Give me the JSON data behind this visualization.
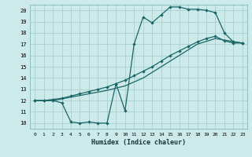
{
  "xlabel": "Humidex (Indice chaleur)",
  "bg_color": "#cceaea",
  "grid_color": "#aacfcf",
  "line_color": "#1a6666",
  "xlim": [
    -0.5,
    23.5
  ],
  "ylim": [
    9.5,
    20.5
  ],
  "xticks": [
    0,
    1,
    2,
    3,
    4,
    5,
    6,
    7,
    8,
    9,
    10,
    11,
    12,
    13,
    14,
    15,
    16,
    17,
    18,
    19,
    20,
    21,
    22,
    23
  ],
  "yticks": [
    10,
    11,
    12,
    13,
    14,
    15,
    16,
    17,
    18,
    19,
    20
  ],
  "series1": [
    [
      0,
      12.0
    ],
    [
      1,
      12.0
    ],
    [
      2,
      12.0
    ],
    [
      3,
      11.8
    ],
    [
      4,
      10.1
    ],
    [
      5,
      10.0
    ],
    [
      6,
      10.1
    ],
    [
      7,
      10.0
    ],
    [
      8,
      10.0
    ],
    [
      9,
      13.5
    ],
    [
      10,
      11.1
    ],
    [
      11,
      17.0
    ],
    [
      12,
      19.4
    ],
    [
      13,
      18.9
    ],
    [
      14,
      19.6
    ],
    [
      15,
      20.3
    ],
    [
      16,
      20.3
    ],
    [
      17,
      20.1
    ],
    [
      18,
      20.1
    ],
    [
      19,
      20.0
    ],
    [
      20,
      19.8
    ],
    [
      21,
      18.0
    ],
    [
      22,
      17.2
    ],
    [
      23,
      17.1
    ]
  ],
  "series2": [
    [
      0,
      12.0
    ],
    [
      1,
      12.0
    ],
    [
      2,
      12.1
    ],
    [
      3,
      12.2
    ],
    [
      4,
      12.4
    ],
    [
      5,
      12.6
    ],
    [
      6,
      12.8
    ],
    [
      7,
      13.0
    ],
    [
      8,
      13.2
    ],
    [
      9,
      13.5
    ],
    [
      10,
      13.8
    ],
    [
      11,
      14.2
    ],
    [
      12,
      14.6
    ],
    [
      13,
      15.0
    ],
    [
      14,
      15.5
    ],
    [
      15,
      16.0
    ],
    [
      16,
      16.4
    ],
    [
      17,
      16.8
    ],
    [
      18,
      17.2
    ],
    [
      19,
      17.5
    ],
    [
      20,
      17.7
    ],
    [
      21,
      17.3
    ],
    [
      22,
      17.1
    ],
    [
      23,
      17.1
    ]
  ],
  "series3": [
    [
      0,
      12.0
    ],
    [
      2,
      12.0
    ],
    [
      4,
      12.3
    ],
    [
      6,
      12.6
    ],
    [
      8,
      12.9
    ],
    [
      10,
      13.3
    ],
    [
      12,
      14.0
    ],
    [
      14,
      15.0
    ],
    [
      16,
      16.0
    ],
    [
      18,
      17.0
    ],
    [
      20,
      17.5
    ],
    [
      23,
      17.1
    ]
  ]
}
